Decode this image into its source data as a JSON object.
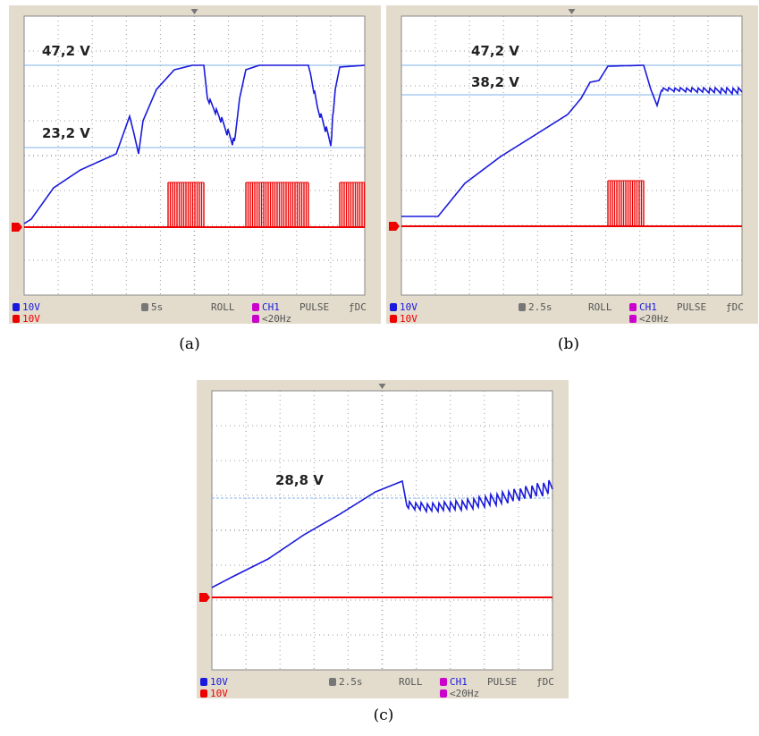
{
  "panels": [
    {
      "caption": "(a)",
      "annotations": [
        "47,2 V",
        "23,2 V"
      ],
      "ch1_scale": "10V",
      "ch2_scale": "10V",
      "timebase": "5s",
      "mode": "ROLL",
      "trigger_source": "CH1",
      "trigger_type": "PULSE",
      "coupling": "ƒDC",
      "filter": "<20Hz"
    },
    {
      "caption": "(b)",
      "annotations": [
        "47,2 V",
        "38,2 V"
      ],
      "ch1_scale": "10V",
      "ch2_scale": "10V",
      "timebase": "2.5s",
      "mode": "ROLL",
      "trigger_source": "CH1",
      "trigger_type": "PULSE",
      "coupling": "ƒDC",
      "filter": "<20Hz"
    },
    {
      "caption": "(c)",
      "annotations": [
        "28,8 V"
      ],
      "ch1_scale": "10V",
      "ch2_scale": "10V",
      "timebase": "2.5s",
      "mode": "ROLL",
      "trigger_source": "CH1",
      "trigger_type": "PULSE",
      "coupling": "ƒDC",
      "filter": "<20Hz"
    }
  ]
}
